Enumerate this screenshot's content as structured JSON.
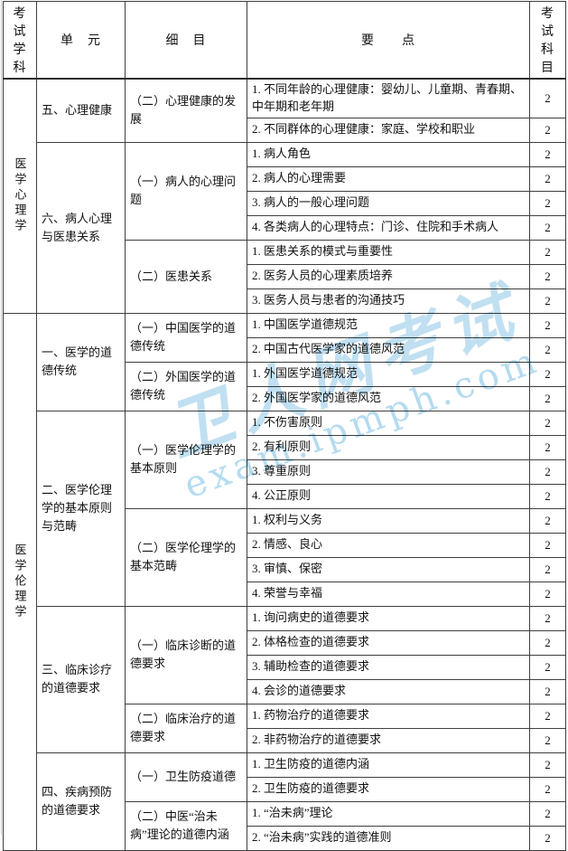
{
  "table": {
    "headers": {
      "subject": "考试\n学科",
      "unit": "单　元",
      "item": "细　目",
      "points": "要　　点",
      "score": "考试\n科目"
    },
    "subjects": [
      {
        "name": "医学心理学",
        "units": [
          {
            "name": "五、心理健康",
            "items": [
              {
                "name": "（二）心理健康的发展",
                "points": [
                  {
                    "text": "1. 不同年龄的心理健康：婴幼儿、儿童期、青春期、中年期和老年期",
                    "score": "2",
                    "tall": true
                  },
                  {
                    "text": "2. 不同群体的心理健康：家庭、学校和职业",
                    "score": "2"
                  }
                ]
              }
            ]
          },
          {
            "name": "六、病人心理与医患关系",
            "items": [
              {
                "name": "（一）病人的心理问题",
                "points": [
                  {
                    "text": "1. 病人角色",
                    "score": "2"
                  },
                  {
                    "text": "2. 病人的心理需要",
                    "score": "2"
                  },
                  {
                    "text": "3. 病人的一般心理问题",
                    "score": "2"
                  },
                  {
                    "text": "4. 各类病人的心理特点：门诊、住院和手术病人",
                    "score": "2"
                  }
                ]
              },
              {
                "name": "（二）医患关系",
                "points": [
                  {
                    "text": "1. 医患关系的模式与重要性",
                    "score": "2"
                  },
                  {
                    "text": "2. 医务人员的心理素质培养",
                    "score": "2"
                  },
                  {
                    "text": "3. 医务人员与患者的沟通技巧",
                    "score": "2"
                  }
                ]
              }
            ]
          }
        ]
      },
      {
        "name": "医学伦理学",
        "units": [
          {
            "name": "一、医学的道德传统",
            "items": [
              {
                "name": "（一）中国医学的道德传统",
                "points": [
                  {
                    "text": "1. 中国医学道德规范",
                    "score": "2"
                  },
                  {
                    "text": "2. 中国古代医学家的道德风范",
                    "score": "2"
                  }
                ]
              },
              {
                "name": "（二）外国医学的道德传统",
                "points": [
                  {
                    "text": "1. 外国医学道德规范",
                    "score": "2"
                  },
                  {
                    "text": "2. 外国医学家的道德风范",
                    "score": "2"
                  }
                ]
              }
            ]
          },
          {
            "name": "二、医学伦理学的基本原则与范畴",
            "items": [
              {
                "name": "（一）医学伦理学的基本原则",
                "points": [
                  {
                    "text": "1. 不伤害原则",
                    "score": "2"
                  },
                  {
                    "text": "2. 有利原则",
                    "score": "2"
                  },
                  {
                    "text": "3. 尊重原则",
                    "score": "2"
                  },
                  {
                    "text": "4. 公正原则",
                    "score": "2"
                  }
                ]
              },
              {
                "name": "（二）医学伦理学的基本范畴",
                "points": [
                  {
                    "text": "1. 权利与义务",
                    "score": "2"
                  },
                  {
                    "text": "2. 情感、良心",
                    "score": "2"
                  },
                  {
                    "text": "3. 审慎、保密",
                    "score": "2"
                  },
                  {
                    "text": "4. 荣誉与幸福",
                    "score": "2"
                  }
                ]
              }
            ]
          },
          {
            "name": "三、临床诊疗的道德要求",
            "items": [
              {
                "name": "（一）临床诊断的道德要求",
                "points": [
                  {
                    "text": "1. 询问病史的道德要求",
                    "score": "2"
                  },
                  {
                    "text": "2. 体格检查的道德要求",
                    "score": "2"
                  },
                  {
                    "text": "3. 辅助检查的道德要求",
                    "score": "2"
                  },
                  {
                    "text": "4. 会诊的道德要求",
                    "score": "2"
                  }
                ]
              },
              {
                "name": "（二）临床治疗的道德要求",
                "points": [
                  {
                    "text": "1. 药物治疗的道德要求",
                    "score": "2"
                  },
                  {
                    "text": "2. 非药物治疗的道德要求",
                    "score": "2"
                  }
                ]
              }
            ]
          },
          {
            "name": "四、疾病预防的道德要求",
            "items": [
              {
                "name": "（一）卫生防疫道德",
                "points": [
                  {
                    "text": "1. 卫生防疫的道德内涵",
                    "score": "2"
                  },
                  {
                    "text": "2. 卫生防疫的道德要求",
                    "score": "2"
                  }
                ]
              },
              {
                "name": "（二）中医“治未病”理论的道德内涵",
                "points": [
                  {
                    "text": "1. “治未病”理论",
                    "score": "2"
                  },
                  {
                    "text": "2. “治未病”实践的道德准则",
                    "score": "2"
                  }
                ]
              }
            ]
          }
        ]
      }
    ]
  },
  "watermark": {
    "brand_text": "卫人网考试",
    "url_text": "exam.ipmph.com",
    "color": "#8dc7e8"
  }
}
